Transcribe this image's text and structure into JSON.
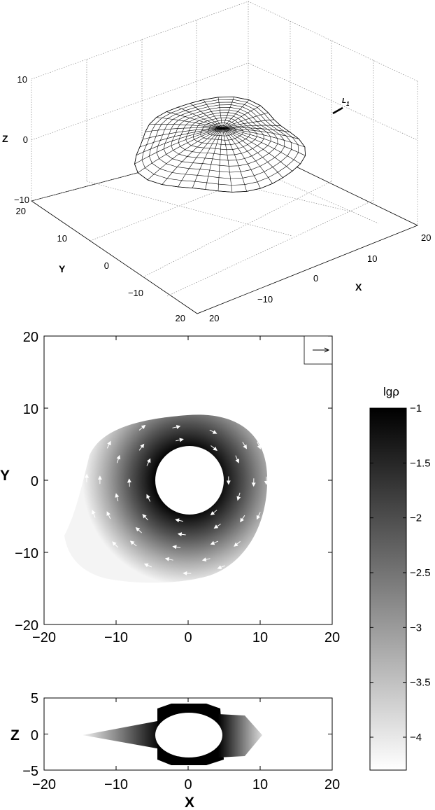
{
  "chart_data": [
    {
      "type": "surface-3d",
      "axes": {
        "x": {
          "label": "X",
          "ticks": [
            "−10",
            "0",
            "10",
            "20"
          ],
          "range": [
            -20,
            20
          ]
        },
        "y": {
          "label": "Y",
          "ticks": [
            "20",
            "10",
            "0",
            "−10",
            "20"
          ],
          "range": [
            -20,
            20
          ]
        },
        "z": {
          "label": "Z",
          "ticks": [
            "10",
            "0",
            "−10"
          ],
          "range": [
            -10,
            10
          ]
        },
        "cut_label": "20"
      },
      "annotation": {
        "text": "L",
        "subscript": "1"
      },
      "surface": {
        "description": "wireframe density isosurface",
        "radius_range": [
          4,
          17
        ],
        "z_range": [
          -6,
          3
        ]
      },
      "grid": true
    },
    {
      "type": "heatmap",
      "plane": "XY",
      "xlabel": "",
      "ylabel": "Y",
      "xlim": [
        -20,
        20
      ],
      "ylim": [
        -20,
        20
      ],
      "xticks": [
        "−20",
        "−10",
        "0",
        "10",
        "20"
      ],
      "yticks": [
        "20",
        "10",
        "0",
        "−10",
        "−20"
      ],
      "inner_hole_radius": 4.5,
      "vectors": "velocity field, counter-clockwise flow",
      "colormap": "grayscale (white = low, black = high)"
    },
    {
      "type": "heatmap",
      "plane": "XZ",
      "xlabel": "X",
      "ylabel": "Z",
      "xlim": [
        -20,
        20
      ],
      "ylim": [
        -5,
        5
      ],
      "xticks": [
        "−20",
        "−10",
        "0",
        "10",
        "20"
      ],
      "yticks": [
        "5",
        "0",
        "−5"
      ],
      "inner_hole_radius": 4.5
    }
  ],
  "colorbar": {
    "label": "lgρ",
    "min": -4.3,
    "max": -1,
    "ticks": [
      "−1",
      "−1.5",
      "−2",
      "−2.5",
      "−3",
      "−3.5",
      "−4"
    ]
  }
}
